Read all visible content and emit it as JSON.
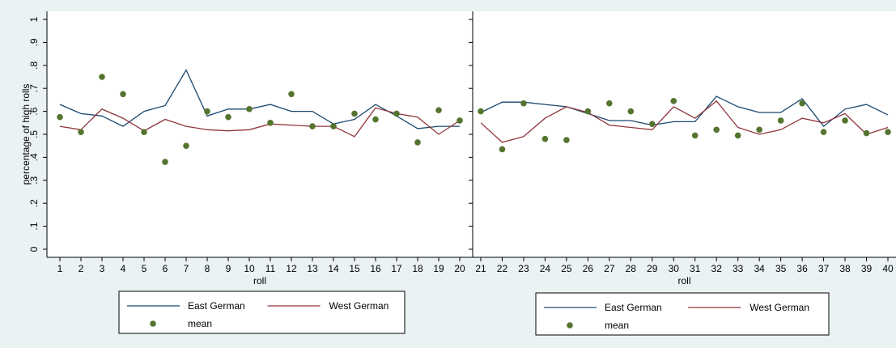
{
  "colors": {
    "background": "#eaf2f3",
    "plot_area": "#ffffff",
    "east_line": "#1a476f",
    "west_line": "#90353b",
    "mean_marker": "#55752f"
  },
  "chart_data": [
    {
      "type": "line",
      "ylabel": "percentage of high rolls",
      "xlabel": "roll",
      "ylim": [
        0,
        1
      ],
      "yticks": [
        "0",
        ".1",
        ".2",
        ".3",
        ".4",
        ".5",
        ".6",
        ".7",
        ".8",
        ".9",
        "1"
      ],
      "x": [
        1,
        2,
        3,
        4,
        5,
        6,
        7,
        8,
        9,
        10,
        11,
        12,
        13,
        14,
        15,
        16,
        17,
        18,
        19,
        20
      ],
      "grid": false,
      "legend_position": "bottom",
      "series": [
        {
          "name": "East German",
          "kind": "line",
          "values": [
            0.63,
            0.59,
            0.58,
            0.535,
            0.6,
            0.625,
            0.78,
            0.58,
            0.61,
            0.61,
            0.63,
            0.6,
            0.6,
            0.545,
            0.565,
            0.63,
            0.58,
            0.525,
            0.535,
            0.535
          ]
        },
        {
          "name": "West German",
          "kind": "line",
          "values": [
            0.535,
            0.52,
            0.61,
            0.57,
            0.515,
            0.565,
            0.535,
            0.52,
            0.515,
            0.52,
            0.545,
            0.54,
            0.535,
            0.535,
            0.49,
            0.615,
            0.59,
            0.575,
            0.5,
            0.56
          ]
        },
        {
          "name": "mean",
          "kind": "scatter",
          "values": [
            0.575,
            0.51,
            0.75,
            0.675,
            0.51,
            0.38,
            0.45,
            0.6,
            0.575,
            0.61,
            0.55,
            0.675,
            0.535,
            0.535,
            0.59,
            0.565,
            0.59,
            0.465,
            0.605,
            0.56
          ]
        }
      ]
    },
    {
      "type": "line",
      "ylabel": "",
      "xlabel": "roll",
      "ylim": [
        0,
        1
      ],
      "x": [
        21,
        22,
        23,
        24,
        25,
        26,
        27,
        28,
        29,
        30,
        31,
        32,
        33,
        34,
        35,
        36,
        37,
        38,
        39,
        40
      ],
      "grid": false,
      "legend_position": "bottom",
      "series": [
        {
          "name": "East German",
          "kind": "line",
          "values": [
            0.595,
            0.64,
            0.64,
            0.63,
            0.62,
            0.59,
            0.56,
            0.56,
            0.54,
            0.555,
            0.555,
            0.665,
            0.62,
            0.595,
            0.595,
            0.655,
            0.535,
            0.61,
            0.63,
            0.585
          ]
        },
        {
          "name": "West German",
          "kind": "line",
          "values": [
            0.55,
            0.465,
            0.49,
            0.57,
            0.62,
            0.595,
            0.54,
            0.53,
            0.52,
            0.62,
            0.57,
            0.645,
            0.53,
            0.5,
            0.52,
            0.57,
            0.55,
            0.59,
            0.5,
            0.53
          ]
        },
        {
          "name": "mean",
          "kind": "scatter",
          "values": [
            0.6,
            0.435,
            0.635,
            0.48,
            0.475,
            0.6,
            0.635,
            0.6,
            0.545,
            0.645,
            0.495,
            0.52,
            0.495,
            0.52,
            0.56,
            0.635,
            0.51,
            0.56,
            0.505,
            0.51
          ]
        }
      ]
    }
  ]
}
